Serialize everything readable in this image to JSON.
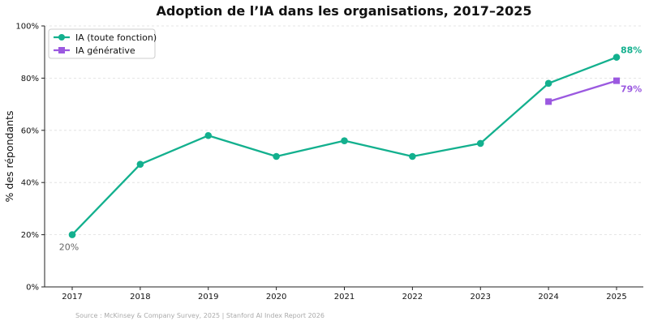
{
  "chart_data": {
    "type": "line",
    "title": "Adoption de l’IA dans les organisations, 2017–2025",
    "xlabel": "",
    "ylabel": "% des répondants",
    "x": [
      "2017",
      "2018",
      "2019",
      "2020",
      "2021",
      "2022",
      "2023",
      "2024",
      "2025"
    ],
    "ylim": [
      0,
      100
    ],
    "yticks": [
      0,
      20,
      40,
      60,
      80,
      100
    ],
    "ytick_labels": [
      "0%",
      "20%",
      "40%",
      "60%",
      "80%",
      "100%"
    ],
    "grid": "horizontal, dashed",
    "legend_position": "top-left",
    "series": [
      {
        "name": "IA (toute fonction)",
        "color": "#13b08e",
        "marker": "circle",
        "values": [
          20,
          47,
          58,
          50,
          56,
          50,
          55,
          78,
          88
        ]
      },
      {
        "name": "IA générative",
        "color": "#9b59e0",
        "marker": "square",
        "values": [
          null,
          null,
          null,
          null,
          null,
          null,
          null,
          71,
          79
        ]
      }
    ],
    "annotations": [
      {
        "series": 0,
        "x": "2017",
        "text": "20%",
        "color": "#666666",
        "bold": false
      },
      {
        "series": 0,
        "x": "2025",
        "text": "88%",
        "color": "#13b08e",
        "bold": true
      },
      {
        "series": 1,
        "x": "2025",
        "text": "79%",
        "color": "#9b59e0",
        "bold": true
      }
    ],
    "source": "Source : McKinsey & Company Survey, 2025 | Stanford AI Index Report 2026"
  }
}
